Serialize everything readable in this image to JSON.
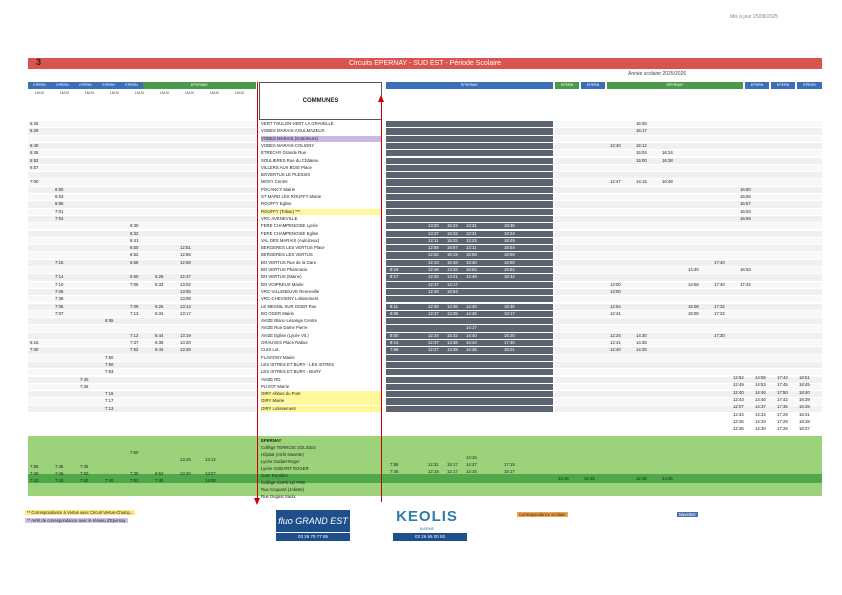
{
  "header": {
    "stamp": "Mis à jour 25/08/2025",
    "page_number": "3",
    "title": "Circuits EPERNAY - SUD EST - Période Scolaire",
    "school_year": "Année scolaire   2025/2026",
    "communes_label": "COMMUNES"
  },
  "left_header_cells": [
    "EPERN",
    "EPERN",
    "EPERN",
    "EPERN",
    "EPERN",
    "EPERNAY"
  ],
  "left_day_cells": [
    "LMJV",
    "LMJV",
    "LMJV",
    "LMJV",
    "LMJV",
    "LMJV",
    "LMJV",
    "LMJV",
    "LMJV"
  ],
  "mid_header_cells": [
    "EPERNAY"
  ],
  "right_header_cells": [
    "EPERN",
    "EPERN",
    "EPERNAY",
    "EPERN",
    "EPERN",
    "EPERN"
  ],
  "stops": [
    {
      "name": "VERT TOULON-VERT LA GRAVELLE",
      "hl": ""
    },
    {
      "name": "VOBES MARAIS-AOULMAZEUX",
      "hl": ""
    },
    {
      "name": "VOBES MARAIS (Gratrimurs)",
      "hl": "l"
    },
    {
      "name": "VOBES MARAIS-COLIGNY",
      "hl": ""
    },
    {
      "name": "ETRECHY Grande Rue",
      "hl": ""
    },
    {
      "name": "SOULIERES Rue du Château",
      "hl": ""
    },
    {
      "name": "VILLERS AUX BOIS Place",
      "hl": ""
    },
    {
      "name": "BOVERTUS LE PLESSIS",
      "hl": ""
    },
    {
      "name": "MOSY Centre",
      "hl": ""
    },
    {
      "name": "POCANCY Mairie",
      "hl": ""
    },
    {
      "name": "ST MARD LES ROUFFY Mairie",
      "hl": ""
    },
    {
      "name": "ROUFFY Eglise",
      "hl": ""
    },
    {
      "name": "ROUFFY (Tobac) ***",
      "hl": "y"
    },
    {
      "name": "VRC-AVENEVILLE",
      "hl": ""
    },
    {
      "name": "FERE CHAMPENOISE Lycée",
      "hl": ""
    },
    {
      "name": "FERE CHAMPENOISE Eglise",
      "hl": ""
    },
    {
      "name": "VAL DES MARAIS (Aulnizeux)",
      "hl": ""
    },
    {
      "name": "BERGERES LES VERTUS Place",
      "hl": ""
    },
    {
      "name": "BERGERES LES VERTUS",
      "hl": ""
    },
    {
      "name": "BO VERTUS Rue de la Gare",
      "hl": ""
    },
    {
      "name": "BO VERTUS Pharmacie",
      "hl": ""
    },
    {
      "name": "BO VERTUS (Mairie)",
      "hl": ""
    },
    {
      "name": "BO VOIPREUX Mairie",
      "hl": ""
    },
    {
      "name": "VRC-VILLENEUVE Renneville",
      "hl": ""
    },
    {
      "name": "VRC-CHEVIGNY Lotissement",
      "hl": ""
    },
    {
      "name": "LE MESNIL SUR OGER Rue",
      "hl": ""
    },
    {
      "name": "BO OGER Mairie",
      "hl": ""
    },
    {
      "name": "AVIZE Blanc-Lésange Centre",
      "hl": ""
    },
    {
      "name": "AVIZE Rue Dame Pierre",
      "hl": ""
    },
    {
      "name": "AVIZE Eglise (Lycée Vit.)",
      "hl": ""
    },
    {
      "name": "GRAUVES Place Rabus",
      "hl": ""
    },
    {
      "name": "CUIS Lot.",
      "hl": ""
    },
    {
      "name": "FLAVIGNY Mairie",
      "hl": ""
    },
    {
      "name": "LES ISTRES ET BURY - LES ISTRES",
      "hl": ""
    },
    {
      "name": "LES ISTRES ET BURY - BURY",
      "hl": ""
    },
    {
      "name": "AVIZE RD",
      "hl": ""
    },
    {
      "name": "PLIVOT Mairie",
      "hl": ""
    },
    {
      "name": "OIRY Abbes du Pont",
      "hl": "y"
    },
    {
      "name": "OIRY Mairie",
      "hl": "y"
    },
    {
      "name": "OIRY Lotissement",
      "hl": "y"
    }
  ],
  "destinations": [
    {
      "name": "EPERNAY"
    },
    {
      "name": "Collège TERROIS SOLIGES"
    },
    {
      "name": "Hôpital (Arrêt Navette)"
    },
    {
      "name": "Lycée Godart-Roger"
    },
    {
      "name": "Lycée GODART ROGER"
    },
    {
      "name": "Gare Routière"
    },
    {
      "name": "Collège CUPE LE PRE"
    },
    {
      "name": "Rue Coquard (Joliette)"
    },
    {
      "name": "Rue Dugast Saulx"
    }
  ],
  "left_times": [
    [
      "6:25",
      "",
      "",
      "",
      "",
      "",
      "",
      "",
      ""
    ],
    [
      "6:29",
      "",
      "",
      "",
      "",
      "",
      "",
      "",
      ""
    ],
    [
      "",
      "",
      "",
      "",
      "",
      "",
      "",
      "",
      ""
    ],
    [
      "6:40",
      "",
      "",
      "",
      "",
      "",
      "",
      "",
      ""
    ],
    [
      "6:45",
      "",
      "",
      "",
      "",
      "",
      "",
      "",
      ""
    ],
    [
      "6:52",
      "",
      "",
      "",
      "",
      "",
      "",
      "",
      ""
    ],
    [
      "6:57",
      "",
      "",
      "",
      "",
      "",
      "",
      "",
      ""
    ],
    [
      "",
      "",
      "",
      "",
      "",
      "",
      "",
      "",
      ""
    ],
    [
      "7:00",
      "",
      "",
      "",
      "",
      "",
      "",
      "",
      ""
    ],
    [
      "",
      "6:50",
      "",
      "",
      "",
      "",
      "",
      "",
      ""
    ],
    [
      "",
      "6:53",
      "",
      "",
      "",
      "",
      "",
      "",
      ""
    ],
    [
      "",
      "6:56",
      "",
      "",
      "",
      "",
      "",
      "",
      ""
    ],
    [
      "",
      "7:01",
      "",
      "",
      "",
      "",
      "",
      "",
      ""
    ],
    [
      "",
      "7:04",
      "",
      "",
      "",
      "",
      "",
      "",
      ""
    ],
    [
      "",
      "",
      "",
      "",
      "6:30",
      "",
      "",
      "",
      ""
    ],
    [
      "",
      "",
      "",
      "",
      "6:32",
      "",
      "",
      "",
      ""
    ],
    [
      "",
      "",
      "",
      "",
      "6:41",
      "",
      "",
      "",
      ""
    ],
    [
      "",
      "",
      "",
      "",
      "6:50",
      "",
      "12:51",
      "",
      ""
    ],
    [
      "",
      "",
      "",
      "",
      "6:52",
      "",
      "12:55",
      "",
      ""
    ],
    [
      "",
      "7:15",
      "",
      "",
      "6:58",
      "",
      "12:59",
      "",
      ""
    ],
    [
      "",
      "",
      "",
      "",
      "",
      "",
      "",
      "",
      ""
    ],
    [
      "",
      "7:14",
      "",
      "",
      "6:50",
      "6:28",
      "12:47",
      "",
      ""
    ],
    [
      "",
      "7:10",
      "",
      "",
      "7:06",
      "6:33",
      "13:02",
      "",
      ""
    ],
    [
      "",
      "7:06",
      "",
      "",
      "",
      "",
      "13:05",
      "",
      ""
    ],
    [
      "",
      "7:38",
      "",
      "",
      "",
      "",
      "13:08",
      "",
      ""
    ],
    [
      "",
      "7:06",
      "",
      "",
      "7:09",
      "6:26",
      "13:14",
      "",
      ""
    ],
    [
      "",
      "7:07",
      "",
      "",
      "7:13",
      "6:34",
      "13:17",
      "",
      ""
    ],
    [
      "",
      "",
      "",
      "6:55",
      "",
      "",
      "",
      "",
      ""
    ],
    [
      "",
      "",
      "",
      "",
      "",
      "",
      "",
      "",
      ""
    ],
    [
      "",
      "",
      "",
      "",
      "7:12",
      "6:44",
      "13:19",
      "",
      ""
    ],
    [
      "6:16",
      "",
      "",
      "",
      "7:37",
      "6:36",
      "13:20",
      "",
      ""
    ],
    [
      "7:30",
      "",
      "",
      "",
      "7:52",
      "6:44",
      "13:28",
      "",
      ""
    ],
    [
      "",
      "",
      "",
      "7:50",
      "",
      "",
      "",
      "",
      ""
    ],
    [
      "",
      "",
      "",
      "7:50",
      "",
      "",
      "",
      "",
      ""
    ],
    [
      "",
      "",
      "",
      "7:53",
      "",
      "",
      "",
      "",
      ""
    ],
    [
      "",
      "",
      "7:40",
      "",
      "",
      "",
      "",
      "",
      ""
    ],
    [
      "",
      "",
      "7:45",
      "",
      "",
      "",
      "",
      "",
      ""
    ],
    [
      "",
      "",
      "",
      "7:16",
      "",
      "",
      "",
      "",
      ""
    ],
    [
      "",
      "",
      "",
      "7:17",
      "",
      "",
      "",
      "",
      ""
    ],
    [
      "",
      "",
      "",
      "7:13",
      "",
      "",
      "",
      "",
      ""
    ]
  ],
  "left_dest_times": [
    [
      "",
      "",
      "",
      "",
      "7:50",
      "",
      "",
      "",
      ""
    ],
    [
      "",
      "",
      "",
      "",
      "",
      "",
      "13:15",
      "13:12",
      ""
    ],
    [
      "7:55",
      "7:45",
      "7:35",
      "",
      "",
      "",
      "",
      "",
      ""
    ],
    [
      "7:45",
      "7:46",
      "7:50",
      "",
      "7:30",
      "6:53",
      "13:40",
      "13:07",
      ""
    ],
    [
      "7:43",
      "7:43",
      "7:40",
      "7:40",
      "7:53",
      "7:45",
      "",
      "14:00",
      ""
    ]
  ],
  "mid_times": [
    [
      "",
      "",
      "",
      "",
      "",
      "",
      "",
      "",
      ""
    ],
    [
      "",
      "",
      "",
      "",
      "",
      "",
      "",
      "",
      ""
    ],
    [
      "",
      "",
      "",
      "",
      "",
      "",
      "",
      "",
      ""
    ],
    [
      "",
      "",
      "",
      "",
      "",
      "",
      "",
      "",
      ""
    ],
    [
      "",
      "",
      "",
      "",
      "",
      "",
      "",
      "",
      ""
    ],
    [
      "",
      "",
      "",
      "",
      "",
      "",
      "",
      "",
      ""
    ],
    [
      "",
      "",
      "",
      "",
      "",
      "",
      "",
      "",
      ""
    ],
    [
      "",
      "",
      "",
      "",
      "",
      "",
      "",
      "",
      ""
    ],
    [
      "",
      "",
      "",
      "",
      "",
      "",
      "",
      "",
      ""
    ],
    [
      "",
      "",
      "",
      "",
      "",
      "",
      "",
      "",
      ""
    ],
    [
      "",
      "",
      "",
      "",
      "",
      "",
      "",
      "",
      ""
    ],
    [
      "",
      "",
      "",
      "",
      "",
      "",
      "",
      "",
      ""
    ],
    [
      "",
      "",
      "",
      "",
      "",
      "",
      "",
      "",
      ""
    ],
    [
      "",
      "",
      "",
      "",
      "",
      "",
      "",
      "",
      ""
    ],
    [
      "",
      "",
      "13:20",
      "15:22",
      "13:31",
      "",
      "18:35",
      "",
      ""
    ],
    [
      "",
      "",
      "13:37",
      "15:32",
      "13:31",
      "",
      "18:24",
      "",
      ""
    ],
    [
      "",
      "",
      "12:11",
      "15:33",
      "13:23",
      "",
      "18:49",
      "",
      ""
    ],
    [
      "",
      "",
      "12:55",
      "15:57",
      "13:11",
      "",
      "18:54",
      "",
      ""
    ],
    [
      "",
      "",
      "12:52",
      "16:19",
      "15:58",
      "",
      "18:58",
      "",
      ""
    ],
    [
      "",
      "",
      "12:10",
      "15:48",
      "13:30",
      "",
      "18:50",
      "",
      ""
    ],
    [
      "8:19",
      "",
      "12:46",
      "13:33",
      "15:53",
      "",
      "15:52",
      "",
      ""
    ],
    [
      "8:17",
      "",
      "12:46",
      "13:41",
      "14:46",
      "",
      "18:42",
      "",
      ""
    ],
    [
      "",
      "",
      "12:47",
      "14:17",
      "",
      "",
      "",
      "",
      ""
    ],
    [
      "",
      "",
      "12:46",
      "16:54",
      "",
      "",
      "",
      "",
      ""
    ],
    [
      "",
      "",
      "",
      "",
      "",
      "",
      "",
      "",
      ""
    ],
    [
      "8:11",
      "",
      "12:30",
      "12:36",
      "14:40",
      "",
      "18:35",
      "",
      ""
    ],
    [
      "8:06",
      "",
      "12:37",
      "13:35",
      "14:45",
      "",
      "18:17",
      "",
      ""
    ],
    [
      "",
      "",
      "",
      "",
      "",
      "",
      "",
      "",
      ""
    ],
    [
      "",
      "",
      "",
      "",
      "14:17",
      "",
      "",
      "",
      ""
    ],
    [
      "8:00",
      "",
      "12:34",
      "15:32",
      "14:40",
      "",
      "18:20",
      "",
      ""
    ],
    [
      "8:14",
      "",
      "12:37",
      "13:36",
      "14:42",
      "",
      "17:40",
      "",
      ""
    ],
    [
      "7:58",
      "",
      "12:27",
      "13:39",
      "14:35",
      "",
      "18:21",
      "",
      ""
    ]
  ],
  "mid_dest_times": [
    [
      "",
      "",
      "",
      "",
      "14:16",
      "",
      "",
      "",
      ""
    ],
    [
      "7:58",
      "",
      "12:31",
      "15:17",
      "14:27",
      "",
      "17:19",
      "",
      ""
    ],
    [
      "7:45",
      "",
      "12:15",
      "12:17",
      "14:16",
      "",
      "15:17",
      "",
      ""
    ]
  ],
  "right_times": [
    [
      "",
      "",
      "",
      "16:30",
      "",
      "",
      "",
      "",
      ""
    ],
    [
      "",
      "",
      "",
      "16:17",
      "",
      "",
      "",
      "",
      ""
    ],
    [
      "",
      "",
      "",
      "",
      "",
      "",
      "",
      "",
      ""
    ],
    [
      "",
      "",
      "12:40",
      "15:12",
      "",
      "",
      "",
      "",
      ""
    ],
    [
      "",
      "",
      "",
      "15:04",
      "16:34",
      "",
      "",
      "",
      ""
    ],
    [
      "",
      "",
      "",
      "15:00",
      "16:38",
      "",
      "",
      "",
      ""
    ],
    [
      "",
      "",
      "",
      "",
      "",
      "",
      "",
      "",
      ""
    ],
    [
      "",
      "",
      "",
      "",
      "",
      "",
      "",
      "",
      ""
    ],
    [
      "",
      "",
      "12:47",
      "14:15",
      "16:48",
      "",
      "",
      "",
      ""
    ],
    [
      "",
      "",
      "",
      "",
      "",
      "",
      "",
      "16:50",
      ""
    ],
    [
      "",
      "",
      "",
      "",
      "",
      "",
      "",
      "16:56",
      ""
    ],
    [
      "",
      "",
      "",
      "",
      "",
      "",
      "",
      "16:57",
      ""
    ],
    [
      "",
      "",
      "",
      "",
      "",
      "",
      "",
      "16:53",
      ""
    ],
    [
      "",
      "",
      "",
      "",
      "",
      "",
      "",
      "16:59",
      ""
    ],
    [
      "",
      "",
      "",
      "",
      "",
      "",
      "",
      "",
      ""
    ],
    [
      "",
      "",
      "",
      "",
      "",
      "",
      "",
      "",
      ""
    ],
    [
      "",
      "",
      "",
      "",
      "",
      "",
      "",
      "",
      ""
    ],
    [
      "",
      "",
      "",
      "",
      "",
      "",
      "",
      "",
      ""
    ],
    [
      "",
      "",
      "",
      "",
      "",
      "",
      "",
      "",
      ""
    ],
    [
      "",
      "",
      "",
      "",
      "",
      "",
      "17:40",
      "",
      ""
    ],
    [
      "",
      "",
      "",
      "",
      "",
      "14:40",
      "",
      "16:53",
      ""
    ],
    [
      "",
      "",
      "",
      "",
      "",
      "",
      "",
      "",
      ""
    ],
    [
      "",
      "",
      "13:00",
      "",
      "",
      "14:55",
      "17:40",
      "17:42",
      ""
    ],
    [
      "",
      "",
      "13:00",
      "",
      "",
      "",
      "",
      "",
      ""
    ],
    [
      "",
      "",
      "",
      "",
      "",
      "",
      "",
      "",
      ""
    ],
    [
      "",
      "",
      "12:54",
      "",
      "",
      "15:08",
      "17:32",
      "",
      ""
    ],
    [
      "",
      "",
      "12:41",
      "",
      "",
      "15:05",
      "17:32",
      "",
      ""
    ],
    [
      "",
      "",
      "",
      "",
      "",
      "",
      "",
      "",
      ""
    ],
    [
      "",
      "",
      "",
      "",
      "",
      "",
      "",
      "",
      ""
    ],
    [
      "",
      "",
      "12:34",
      "14:30",
      "",
      "",
      "17:30",
      "",
      ""
    ],
    [
      "",
      "",
      "12:41",
      "14:36",
      "",
      "",
      "",
      "",
      ""
    ],
    [
      "",
      "",
      "12:40",
      "14:30",
      "",
      "",
      "",
      "",
      ""
    ],
    [
      "",
      "",
      "",
      "",
      "",
      "",
      "",
      "",
      ""
    ],
    [
      "",
      "",
      "",
      "",
      "",
      "",
      "",
      "",
      ""
    ],
    [
      "",
      "",
      "",
      "",
      "",
      "",
      "",
      "",
      ""
    ],
    [
      "",
      "",
      "",
      "",
      "",
      "",
      "",
      "",
      ""
    ],
    [
      "",
      "",
      "",
      "",
      "",
      "",
      "",
      "",
      ""
    ]
  ],
  "right_side_times": [
    [
      "12:52",
      "14:55",
      "17:42",
      "18:51"
    ],
    [
      "12:49",
      "14:53",
      "17:45",
      "18:45"
    ],
    [
      "12:40",
      "14:46",
      "17:50",
      "18:40"
    ],
    [
      "12:43",
      "14:46",
      "17:42",
      "18:39"
    ],
    [
      "12:07",
      "14:37",
      "17:35",
      "18:28"
    ],
    [
      "12:34",
      "14:34",
      "17:29",
      "18:31"
    ],
    [
      "12:35",
      "14:33",
      "17:29",
      "18:28"
    ],
    [
      "12:36",
      "14:30",
      "17:26",
      "18:37"
    ]
  ],
  "right_dest_times": [
    [
      "",
      "",
      "",
      "",
      "",
      "",
      "",
      "",
      ""
    ],
    [
      "",
      "",
      "",
      "",
      "",
      "",
      "",
      "",
      ""
    ],
    [
      "12:46",
      "12:45",
      "",
      "12:35",
      "14:35",
      "",
      "",
      "",
      ""
    ]
  ],
  "footer": {
    "note1": "** Correspondance à Vertus avec Circuit Vertus-Champ...",
    "note2": "** Arrêt de correspondance avec le réseau d'Epernay",
    "fluo_logo": "fluo GRAND EST",
    "fluo_phone": "03 26 70 77 65",
    "keolis_logo": "KEOLIS",
    "keolis_sub": "MARNE",
    "keolis_phone": "03 26 65 00 93",
    "legend_orange": "Correspondance scolaire",
    "legend_blue": "Navettes"
  }
}
